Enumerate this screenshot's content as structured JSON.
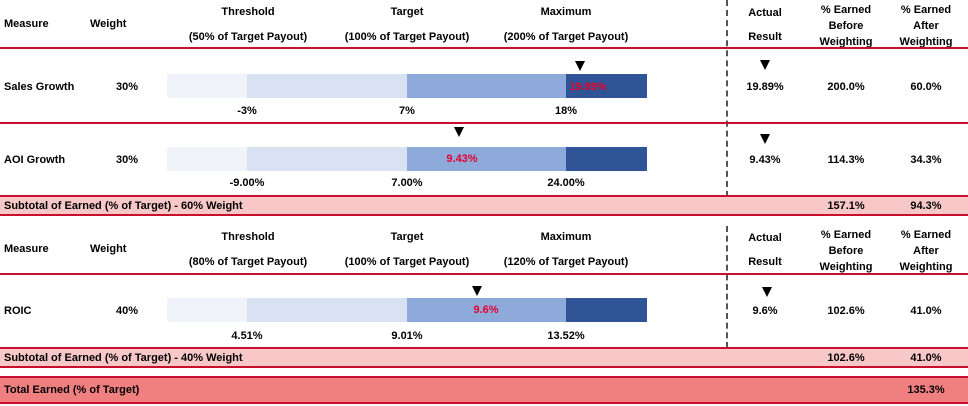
{
  "section1": {
    "header": {
      "measure": "Measure",
      "weight": "Weight",
      "threshold": "Threshold",
      "threshold_sub": "(50% of Target Payout)",
      "target": "Target",
      "target_sub": "(100% of Target Payout)",
      "maximum": "Maximum",
      "maximum_sub": "(200% of Target Payout)",
      "actual": "Actual",
      "result": "Result",
      "earned_before": [
        "% Earned",
        "Before",
        "Weighting"
      ],
      "earned_after": [
        "% Earned",
        "After",
        "Weighting"
      ]
    },
    "rows": [
      {
        "measure": "Sales Growth",
        "weight": "30%",
        "threshold": "-3%",
        "target": "7%",
        "maximum": "18%",
        "bar_value": "19.89%",
        "actual": "19.89%",
        "earned_before": "200.0%",
        "earned_after": "60.0%"
      },
      {
        "measure": "AOI Growth",
        "weight": "30%",
        "threshold": "-9.00%",
        "target": "7.00%",
        "maximum": "24.00%",
        "bar_value": "9.43%",
        "actual": "9.43%",
        "earned_before": "114.3%",
        "earned_after": "34.3%"
      }
    ],
    "subtotal": {
      "label": "Subtotal of Earned (% of Target) - 60% Weight",
      "earned_before": "157.1%",
      "earned_after": "94.3%"
    }
  },
  "section2": {
    "header": {
      "measure": "Measure",
      "weight": "Weight",
      "threshold": "Threshold",
      "threshold_sub": "(80% of Target Payout)",
      "target": "Target",
      "target_sub": "(100% of Target Payout)",
      "maximum": "Maximum",
      "maximum_sub": "(120% of Target Payout)",
      "actual": "Actual",
      "result": "Result",
      "earned_before": [
        "% Earned",
        "Before",
        "Weighting"
      ],
      "earned_after": [
        "% Earned",
        "After",
        "Weighting"
      ]
    },
    "rows": [
      {
        "measure": "ROIC",
        "weight": "40%",
        "threshold": "4.51%",
        "target": "9.01%",
        "maximum": "13.52%",
        "bar_value": "9.6%",
        "actual": "9.6%",
        "earned_before": "102.6%",
        "earned_after": "41.0%"
      }
    ],
    "subtotal": {
      "label": "Subtotal of Earned (% of Target) - 40% Weight",
      "earned_before": "102.6%",
      "earned_after": "41.0%"
    }
  },
  "total": {
    "label": "Total Earned (% of Target)",
    "earned_after": "135.3%"
  },
  "colors": {
    "line_red": "#c8102e",
    "band_light": "#f8c8c8",
    "band_dark": "#f08080",
    "seg1": "#f0f4fa",
    "seg2": "#d9e2f3",
    "seg3": "#8eaadb",
    "seg4": "#2f5597",
    "value_red": "#e5002b"
  }
}
